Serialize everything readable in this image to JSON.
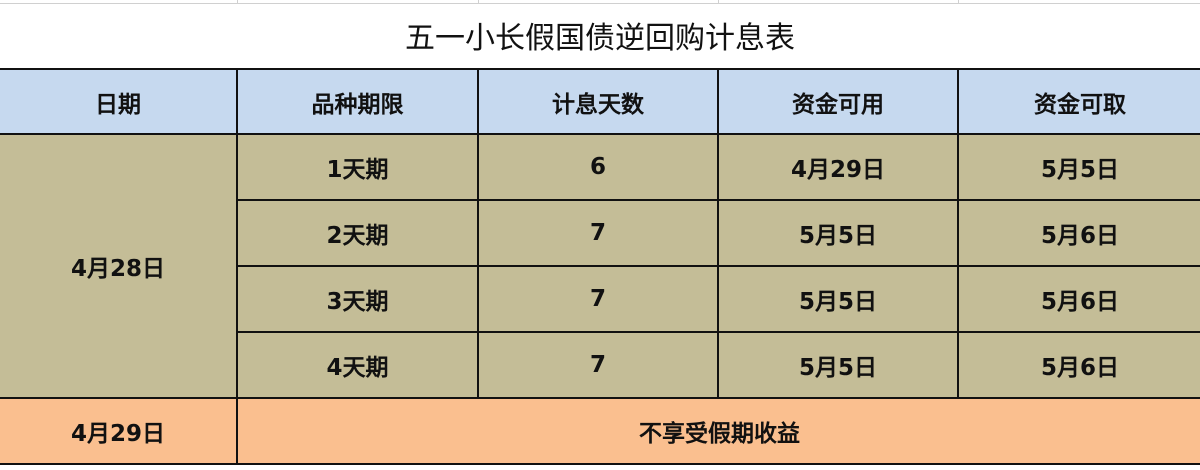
{
  "title": "五一小长假国债逆回购计息表",
  "headers": [
    "日期",
    "品种期限",
    "计息天数",
    "资金可用",
    "资金可取"
  ],
  "group_date": "4月28日",
  "rows": [
    {
      "term": "1天期",
      "days": "6",
      "available": "4月29日",
      "withdrawable": "5月5日"
    },
    {
      "term": "2天期",
      "days": "7",
      "available": "5月5日",
      "withdrawable": "5月6日"
    },
    {
      "term": "3天期",
      "days": "7",
      "available": "5月5日",
      "withdrawable": "5月6日"
    },
    {
      "term": "4天期",
      "days": "7",
      "available": "5月5日",
      "withdrawable": "5月6日"
    }
  ],
  "last_row": {
    "date": "4月29日",
    "note": "不享受假期收益"
  },
  "colors": {
    "header": "#c6d9ef",
    "body": "#c4bd97",
    "last": "#fabf8f"
  }
}
